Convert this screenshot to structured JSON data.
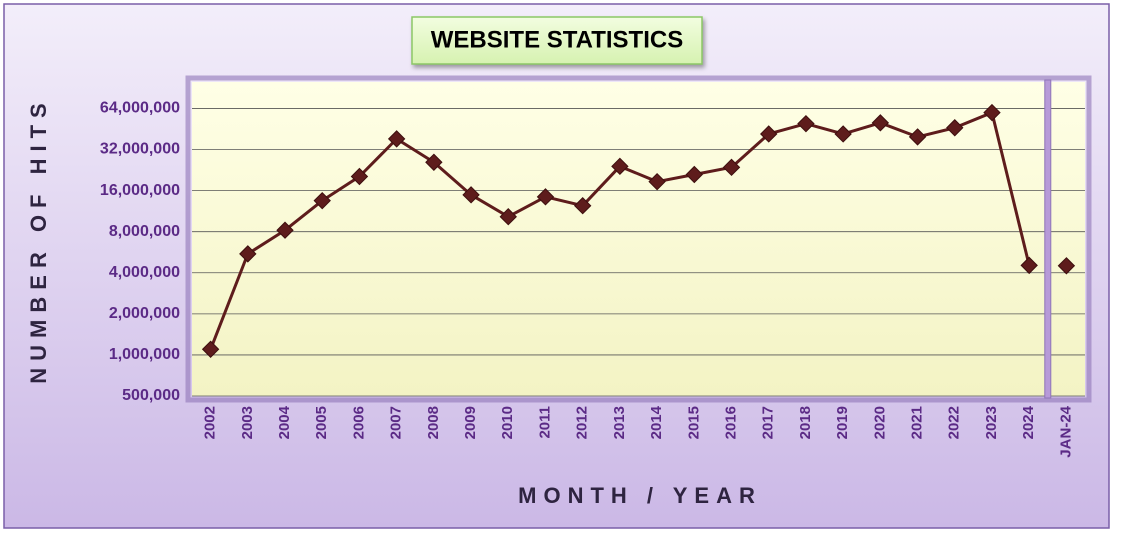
{
  "chart_data": {
    "type": "line",
    "title": "WEBSITE STATISTICS",
    "x_label": "MONTH / YEAR",
    "y_label": "NUMBER OF HITS",
    "categories": [
      "2002",
      "2003",
      "2004",
      "2005",
      "2006",
      "2007",
      "2008",
      "2009",
      "2010",
      "2011",
      "2012",
      "2013",
      "2014",
      "2015",
      "2016",
      "2017",
      "2018",
      "2019",
      "2020",
      "2021",
      "2022",
      "2023",
      "2024",
      "JAN-24"
    ],
    "values": [
      1100000,
      5500000,
      8200000,
      13500000,
      20300000,
      38300000,
      25800000,
      14900000,
      10300000,
      14400000,
      12400000,
      24100000,
      18600000,
      21000000,
      23700000,
      41600000,
      49500000,
      41600000,
      50200000,
      39600000,
      46200000,
      59700000,
      4530000,
      4500000
    ],
    "color": "#5e1c1c",
    "log_scale": true,
    "ylim": [
      500000,
      100000000
    ],
    "yticks": [
      {
        "value": 500000,
        "label": "500,000"
      },
      {
        "value": 1000000,
        "label": "1,000,000"
      },
      {
        "value": 2000000,
        "label": "2,000,000"
      },
      {
        "value": 4000000,
        "label": "4,000,000"
      },
      {
        "value": 8000000,
        "label": "8,000,000"
      },
      {
        "value": 16000000,
        "label": "16,000,000"
      },
      {
        "value": 32000000,
        "label": "32,000,000"
      },
      {
        "value": 64000000,
        "label": "64,000,000"
      }
    ],
    "grid": true
  }
}
